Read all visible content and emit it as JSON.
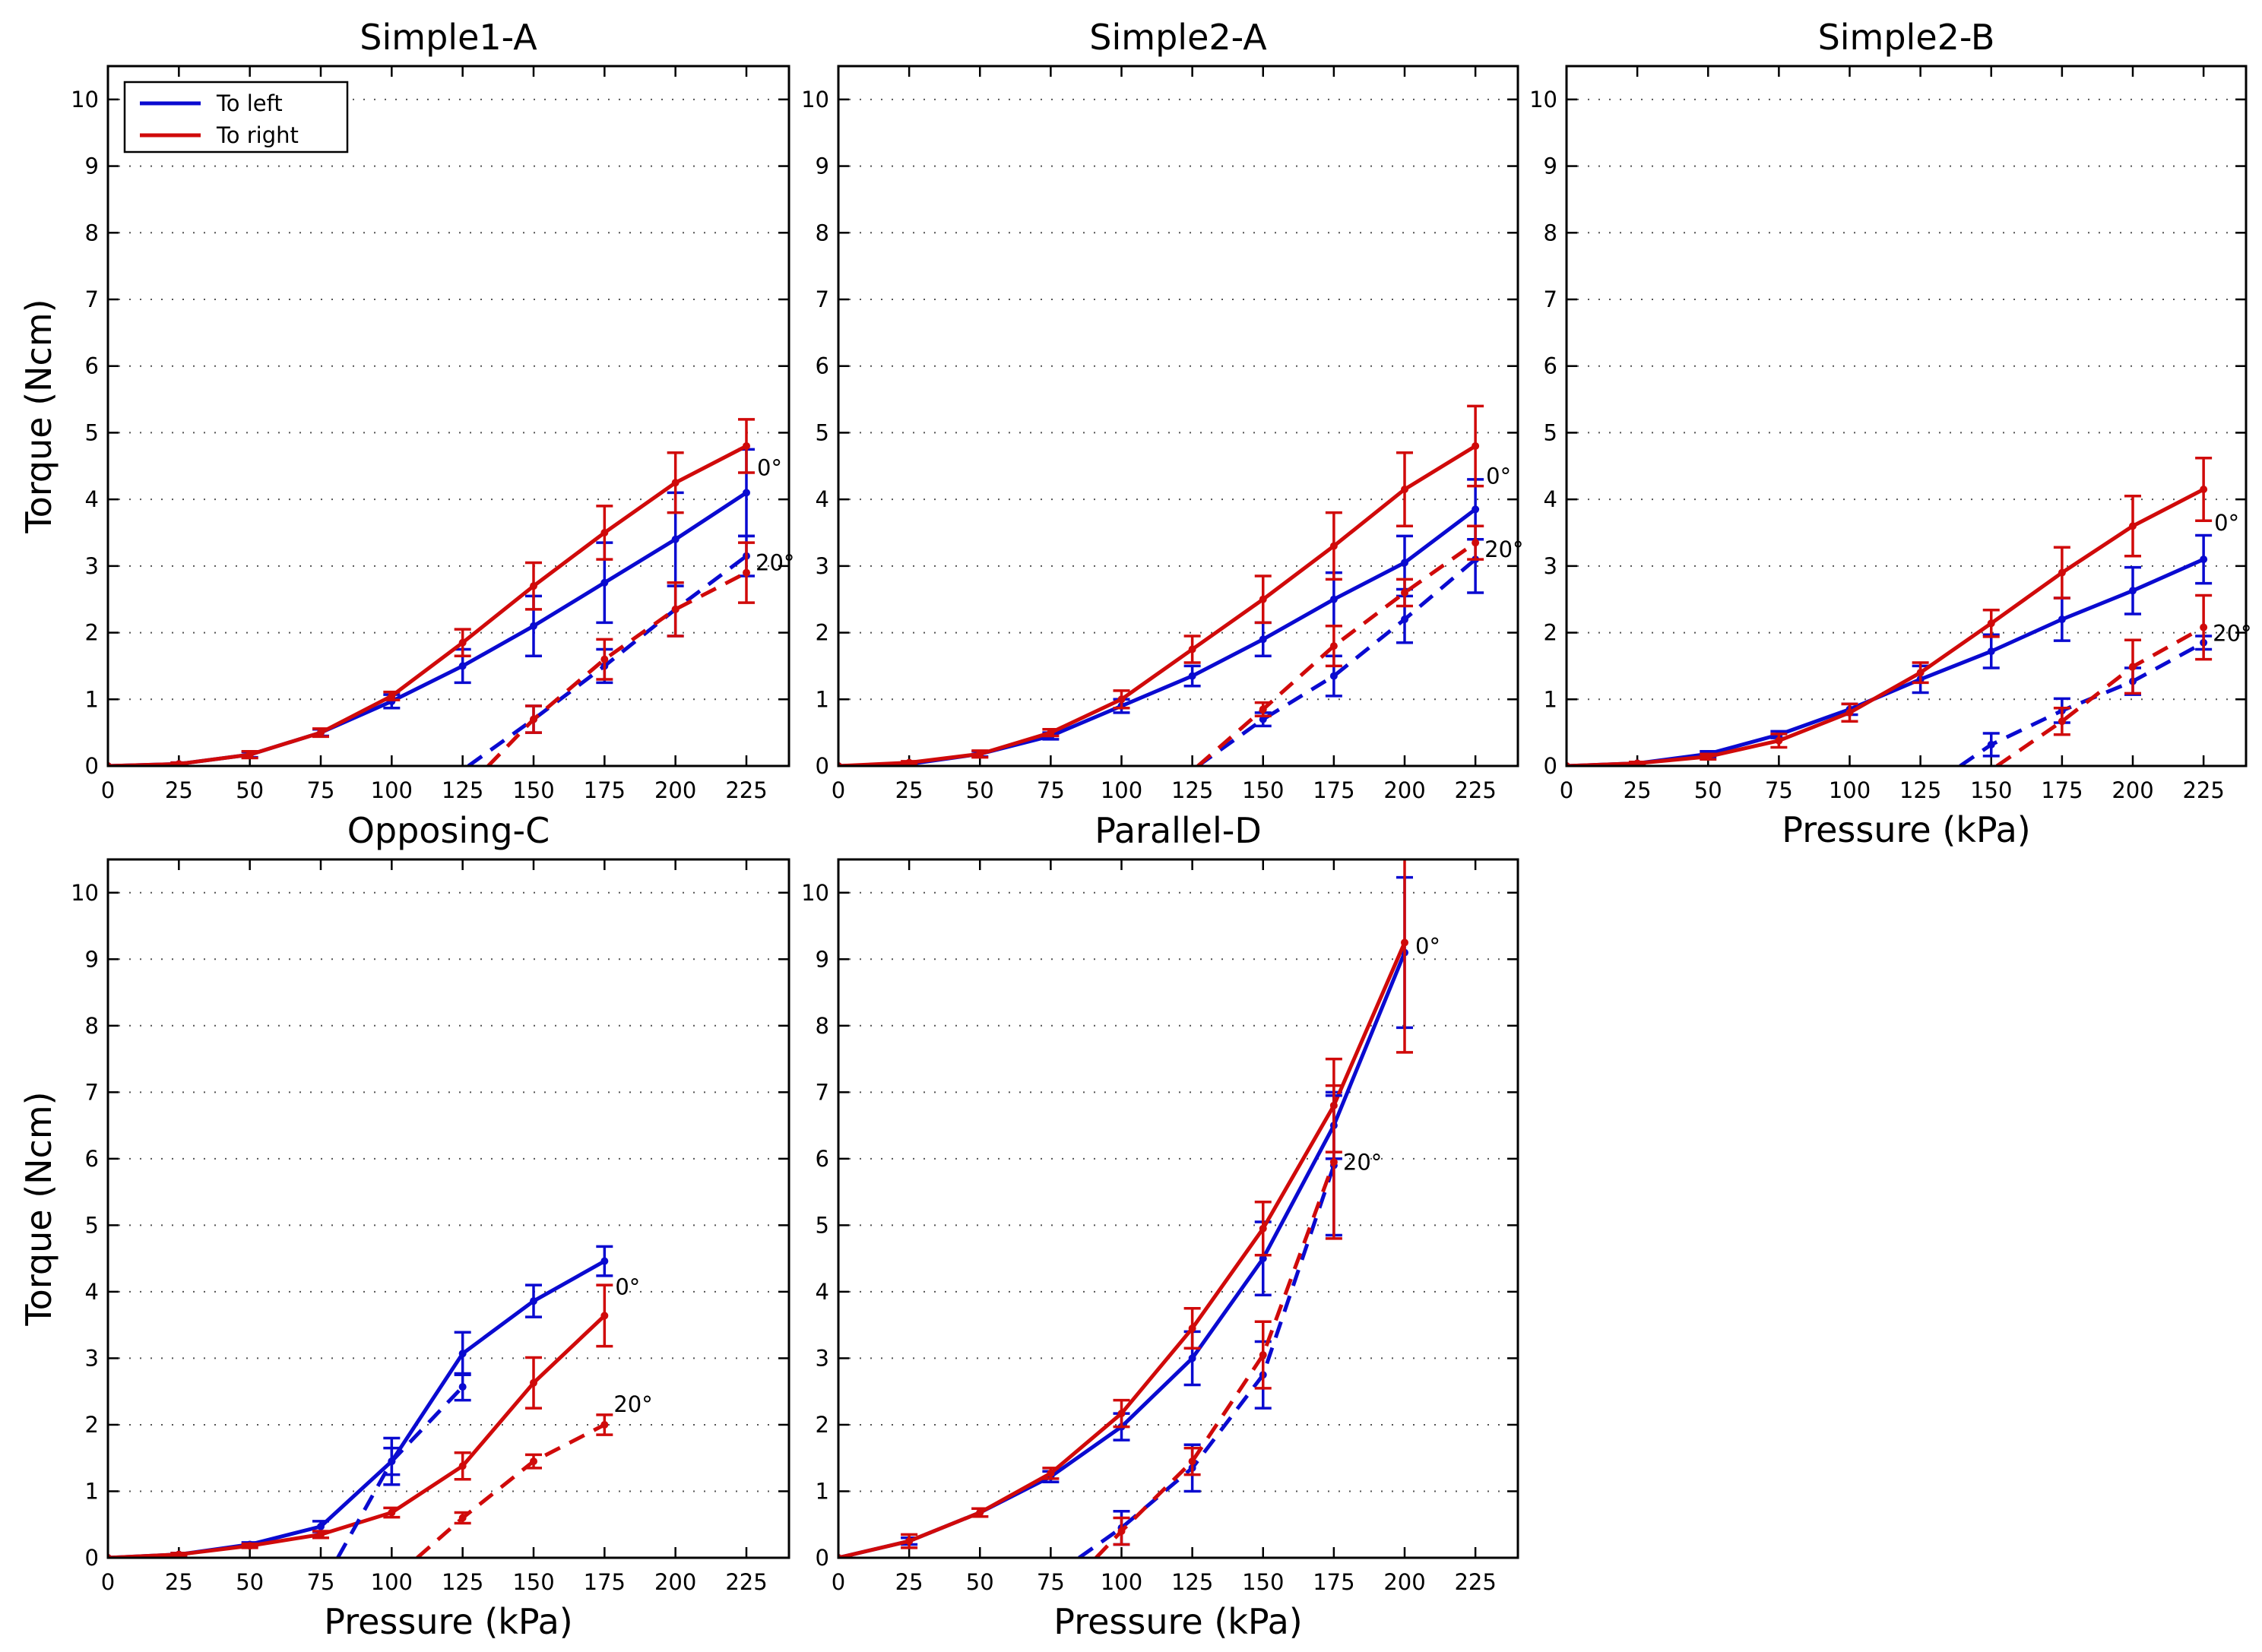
{
  "colors": {
    "to_left": "#0a0ad0",
    "to_right": "#d00a0a",
    "axis": "#000000",
    "grid": "#555555"
  },
  "legend": {
    "items": [
      {
        "label": "To left",
        "series": "left"
      },
      {
        "label": "To right",
        "series": "right"
      }
    ],
    "placement": "top-left"
  },
  "chart_data": [
    {
      "type": "line",
      "title": "Simple1-A",
      "xlabel": "",
      "ylabel": "Torque (Ncm)",
      "xlim": [
        0,
        240
      ],
      "ylim": [
        0,
        10.5
      ],
      "xticks": [
        0,
        25,
        50,
        75,
        100,
        125,
        150,
        175,
        200,
        225
      ],
      "yticks": [
        0,
        1,
        2,
        3,
        4,
        5,
        6,
        7,
        8,
        9,
        10
      ],
      "show_legend": true,
      "grid": "y-dotted",
      "annotations": {
        "solid": "0°",
        "dashed": "20°"
      },
      "series": [
        {
          "name": "To left 0°",
          "side": "left",
          "style": "solid",
          "x": [
            0,
            25,
            50,
            75,
            100,
            125,
            150,
            175,
            200,
            225
          ],
          "y": [
            0,
            0.03,
            0.17,
            0.5,
            0.97,
            1.5,
            2.1,
            2.75,
            3.4,
            4.1
          ],
          "err": [
            0,
            0.02,
            0.04,
            0.05,
            0.1,
            0.25,
            0.45,
            0.6,
            0.7,
            0.65
          ]
        },
        {
          "name": "To right 0°",
          "side": "right",
          "style": "solid",
          "x": [
            0,
            25,
            50,
            75,
            100,
            125,
            150,
            175,
            200,
            225
          ],
          "y": [
            0,
            0.03,
            0.17,
            0.5,
            1.05,
            1.85,
            2.7,
            3.5,
            4.25,
            4.8
          ],
          "err": [
            0,
            0.02,
            0.05,
            0.06,
            0.06,
            0.2,
            0.35,
            0.4,
            0.45,
            0.4
          ]
        },
        {
          "name": "To left 20°",
          "side": "left",
          "style": "dashed",
          "x": [
            127,
            150,
            175,
            200,
            225
          ],
          "y": [
            0,
            0.7,
            1.5,
            2.35,
            3.15
          ],
          "err": [
            null,
            0.2,
            0.25,
            0.4,
            0.3
          ]
        },
        {
          "name": "To right 20°",
          "side": "right",
          "style": "dashed",
          "x": [
            134,
            150,
            175,
            200,
            225
          ],
          "y": [
            0,
            0.7,
            1.6,
            2.35,
            2.9
          ],
          "err": [
            null,
            0.2,
            0.3,
            0.4,
            0.45
          ]
        }
      ]
    },
    {
      "type": "line",
      "title": "Simple2-A",
      "xlabel": "",
      "ylabel": "",
      "xlim": [
        0,
        240
      ],
      "ylim": [
        0,
        10.5
      ],
      "xticks": [
        0,
        25,
        50,
        75,
        100,
        125,
        150,
        175,
        200,
        225
      ],
      "yticks": [
        0,
        1,
        2,
        3,
        4,
        5,
        6,
        7,
        8,
        9,
        10
      ],
      "show_legend": false,
      "grid": "y-dotted",
      "annotations": {
        "solid": "0°",
        "dashed": "20°"
      },
      "series": [
        {
          "name": "To left 0°",
          "side": "left",
          "style": "solid",
          "x": [
            0,
            25,
            50,
            75,
            100,
            125,
            150,
            175,
            200,
            225
          ],
          "y": [
            0,
            0.03,
            0.18,
            0.45,
            0.9,
            1.35,
            1.9,
            2.5,
            3.05,
            3.85
          ],
          "err": [
            0,
            0.02,
            0.04,
            0.05,
            0.1,
            0.15,
            0.25,
            0.4,
            0.4,
            0.45
          ]
        },
        {
          "name": "To right 0°",
          "side": "right",
          "style": "solid",
          "x": [
            0,
            25,
            50,
            75,
            100,
            125,
            150,
            175,
            200,
            225
          ],
          "y": [
            0,
            0.05,
            0.18,
            0.5,
            1.0,
            1.75,
            2.5,
            3.3,
            4.15,
            4.8
          ],
          "err": [
            0,
            0.02,
            0.05,
            0.05,
            0.13,
            0.2,
            0.35,
            0.5,
            0.55,
            0.6
          ]
        },
        {
          "name": "To left 20°",
          "side": "left",
          "style": "dashed",
          "x": [
            127,
            150,
            175,
            200,
            225
          ],
          "y": [
            0,
            0.7,
            1.35,
            2.2,
            3.1
          ],
          "err": [
            null,
            0.1,
            0.3,
            0.35,
            0.5
          ]
        },
        {
          "name": "To right 20°",
          "side": "right",
          "style": "dashed",
          "x": [
            127,
            150,
            175,
            200,
            225
          ],
          "y": [
            0,
            0.85,
            1.8,
            2.6,
            3.35
          ],
          "err": [
            null,
            0.1,
            0.3,
            0.2,
            0.25
          ]
        }
      ]
    },
    {
      "type": "line",
      "title": "Simple2-B",
      "xlabel": "Pressure (kPa)",
      "ylabel": "",
      "xlim": [
        0,
        240
      ],
      "ylim": [
        0,
        10.5
      ],
      "xticks": [
        0,
        25,
        50,
        75,
        100,
        125,
        150,
        175,
        200,
        225
      ],
      "yticks": [
        0,
        1,
        2,
        3,
        4,
        5,
        6,
        7,
        8,
        9,
        10
      ],
      "show_legend": false,
      "grid": "y-dotted",
      "annotations": {
        "solid": "0°",
        "dashed": "20°"
      },
      "series": [
        {
          "name": "To left 0°",
          "side": "left",
          "style": "solid",
          "x": [
            0,
            25,
            50,
            75,
            100,
            125,
            150,
            175,
            200,
            225
          ],
          "y": [
            0,
            0.04,
            0.18,
            0.47,
            0.85,
            1.3,
            1.72,
            2.2,
            2.63,
            3.1
          ],
          "err": [
            0,
            0.02,
            0.04,
            0.05,
            0.08,
            0.2,
            0.25,
            0.32,
            0.35,
            0.36
          ]
        },
        {
          "name": "To right 0°",
          "side": "right",
          "style": "solid",
          "x": [
            0,
            25,
            50,
            75,
            100,
            125,
            150,
            175,
            200,
            225
          ],
          "y": [
            0,
            0.04,
            0.14,
            0.38,
            0.8,
            1.4,
            2.14,
            2.9,
            3.6,
            4.15
          ],
          "err": [
            0,
            0.02,
            0.04,
            0.1,
            0.13,
            0.15,
            0.2,
            0.38,
            0.45,
            0.47
          ]
        },
        {
          "name": "To left 20°",
          "side": "left",
          "style": "dashed",
          "x": [
            139,
            150,
            175,
            200,
            225
          ],
          "y": [
            0,
            0.32,
            0.83,
            1.27,
            1.85
          ],
          "err": [
            null,
            0.17,
            0.18,
            0.2,
            0.1
          ]
        },
        {
          "name": "To right 20°",
          "side": "right",
          "style": "dashed",
          "x": [
            152,
            175,
            200,
            225
          ],
          "y": [
            0,
            0.67,
            1.49,
            2.08
          ],
          "err": [
            null,
            0.2,
            0.4,
            0.48
          ]
        }
      ]
    },
    {
      "type": "line",
      "title": "Opposing-C",
      "xlabel": "Pressure (kPa)",
      "ylabel": "Torque (Ncm)",
      "xlim": [
        0,
        240
      ],
      "ylim": [
        0,
        10.5
      ],
      "xticks": [
        0,
        25,
        50,
        75,
        100,
        125,
        150,
        175,
        200,
        225
      ],
      "yticks": [
        0,
        1,
        2,
        3,
        4,
        5,
        6,
        7,
        8,
        9,
        10
      ],
      "show_legend": false,
      "grid": "y-dotted",
      "annotations": {
        "solid": "0°",
        "dashed": "20°"
      },
      "series": [
        {
          "name": "To left 0°",
          "side": "left",
          "style": "solid",
          "x": [
            0,
            25,
            50,
            75,
            100,
            125,
            150,
            175
          ],
          "y": [
            0,
            0.05,
            0.2,
            0.47,
            1.45,
            3.07,
            3.86,
            4.46
          ],
          "err": [
            0,
            0.02,
            0.03,
            0.08,
            0.35,
            0.32,
            0.24,
            0.22
          ]
        },
        {
          "name": "To right 0°",
          "side": "right",
          "style": "solid",
          "x": [
            0,
            25,
            50,
            75,
            100,
            125,
            150,
            175
          ],
          "y": [
            0,
            0.05,
            0.18,
            0.35,
            0.68,
            1.38,
            2.63,
            3.64
          ],
          "err": [
            0,
            0.02,
            0.03,
            0.05,
            0.07,
            0.2,
            0.38,
            0.46
          ]
        },
        {
          "name": "To left 20°",
          "side": "left",
          "style": "dashed",
          "x": [
            81,
            100,
            125
          ],
          "y": [
            0,
            1.45,
            2.57
          ],
          "err": [
            null,
            0.2,
            0.2
          ]
        },
        {
          "name": "To right 20°",
          "side": "right",
          "style": "dashed",
          "x": [
            109,
            125,
            150,
            175
          ],
          "y": [
            0,
            0.6,
            1.45,
            2.0
          ],
          "err": [
            null,
            0.08,
            0.1,
            0.15
          ]
        }
      ]
    },
    {
      "type": "line",
      "title": "Parallel-D",
      "xlabel": "Pressure (kPa)",
      "ylabel": "",
      "xlim": [
        0,
        240
      ],
      "ylim": [
        0,
        10.5
      ],
      "xticks": [
        0,
        25,
        50,
        75,
        100,
        125,
        150,
        175,
        200,
        225
      ],
      "yticks": [
        0,
        1,
        2,
        3,
        4,
        5,
        6,
        7,
        8,
        9,
        10
      ],
      "show_legend": false,
      "grid": "y-dotted",
      "annotations": {
        "solid": "0°",
        "dashed": "20°"
      },
      "series": [
        {
          "name": "To left 0°",
          "side": "left",
          "style": "solid",
          "x": [
            0,
            25,
            50,
            75,
            100,
            125,
            150,
            175,
            200
          ],
          "y": [
            0,
            0.25,
            0.68,
            1.22,
            1.97,
            3.0,
            4.5,
            6.5,
            9.1
          ],
          "err": [
            0,
            0.05,
            0.06,
            0.08,
            0.2,
            0.4,
            0.55,
            0.5,
            1.13
          ]
        },
        {
          "name": "To right 0°",
          "side": "right",
          "style": "solid",
          "x": [
            0,
            25,
            50,
            75,
            100,
            125,
            150,
            175,
            200
          ],
          "y": [
            0,
            0.25,
            0.68,
            1.27,
            2.17,
            3.45,
            4.95,
            6.8,
            9.25
          ],
          "err": [
            0,
            0.1,
            0.06,
            0.08,
            0.2,
            0.3,
            0.4,
            0.7,
            1.65
          ]
        },
        {
          "name": "To left 20°",
          "side": "left",
          "style": "dashed",
          "x": [
            85,
            100,
            125,
            150,
            175
          ],
          "y": [
            0,
            0.45,
            1.35,
            2.75,
            5.9
          ],
          "err": [
            null,
            0.25,
            0.35,
            0.5,
            1.05
          ]
        },
        {
          "name": "To right 20°",
          "side": "right",
          "style": "dashed",
          "x": [
            91,
            100,
            125,
            150,
            175
          ],
          "y": [
            0,
            0.4,
            1.45,
            3.05,
            5.95
          ],
          "err": [
            null,
            0.2,
            0.2,
            0.5,
            1.15
          ]
        }
      ]
    }
  ]
}
